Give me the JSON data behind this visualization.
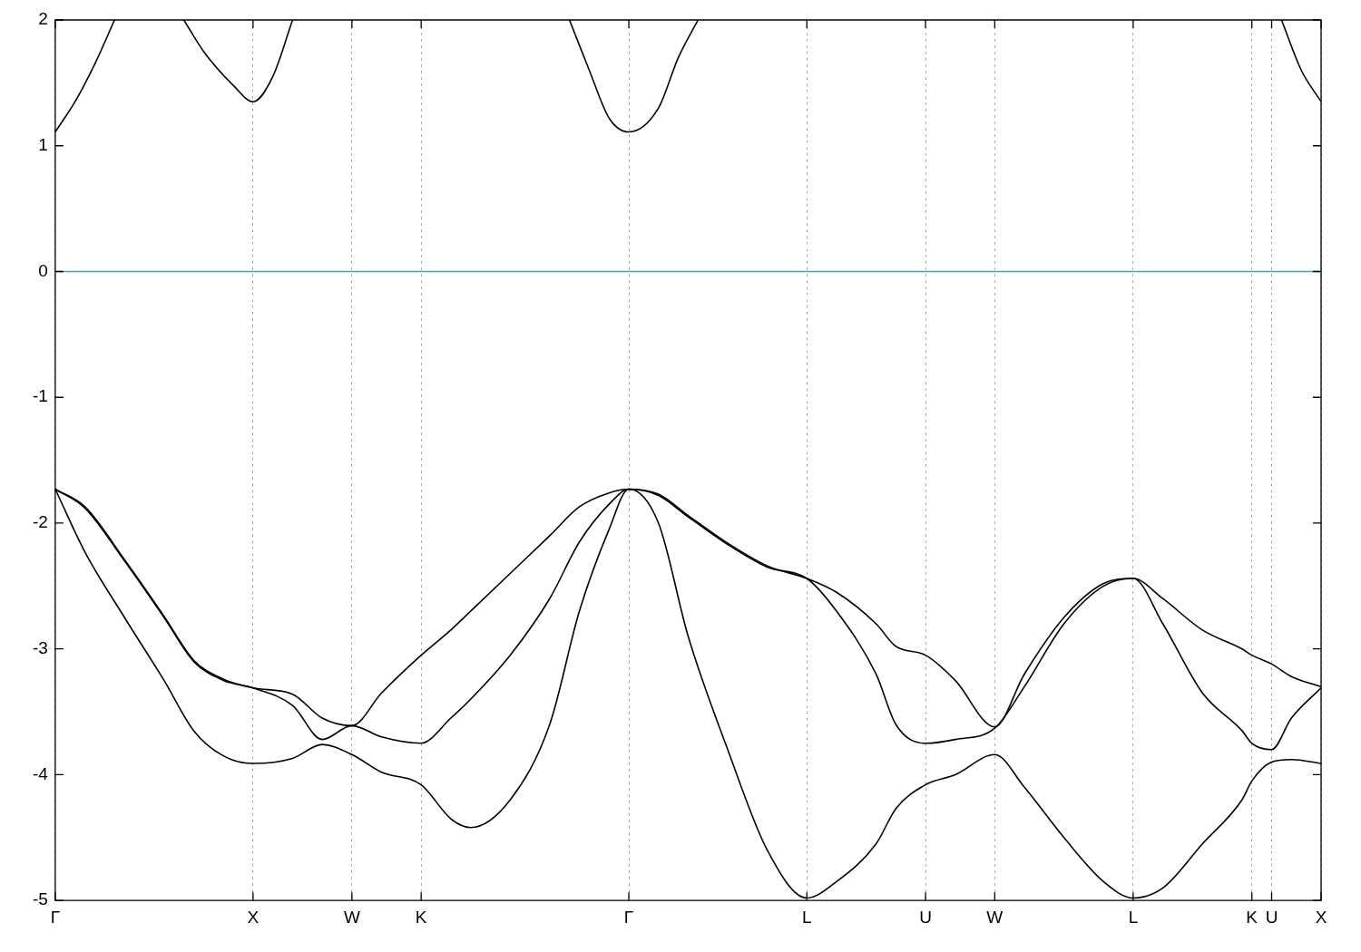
{
  "chart_data": {
    "type": "line",
    "ylim": [
      -5,
      2
    ],
    "categories": [
      "Γ",
      null,
      null,
      null,
      null,
      null,
      null,
      null,
      null,
      null,
      null,
      null,
      null,
      null,
      null,
      null,
      null,
      null,
      null,
      null,
      "X",
      null,
      null,
      null,
      null,
      null,
      null,
      null,
      null,
      null,
      "W",
      null,
      null,
      null,
      null,
      null,
      null,
      "K",
      null,
      null,
      null,
      null,
      null,
      null,
      null,
      null,
      null,
      null,
      null,
      null,
      null,
      null,
      null,
      null,
      null,
      null,
      null,
      null,
      "Γ",
      null,
      null,
      null,
      null,
      null,
      null,
      null,
      null,
      null,
      null,
      null,
      null,
      null,
      null,
      null,
      null,
      null,
      "L",
      null,
      null,
      null,
      null,
      null,
      null,
      null,
      null,
      null,
      null,
      null,
      "U",
      null,
      null,
      null,
      null,
      null,
      null,
      "W",
      null,
      null,
      null,
      null,
      null,
      null,
      null,
      null,
      null,
      null,
      null,
      null,
      null,
      "L",
      null,
      null,
      null,
      null,
      null,
      null,
      null,
      null,
      null,
      null,
      null,
      "K",
      null,
      "U",
      null,
      null,
      null,
      null,
      "X"
    ],
    "yticks": [
      -5,
      -4,
      -3,
      -2,
      -1,
      0,
      1,
      2
    ],
    "grid": "x",
    "legend": false,
    "marker": "none",
    "line_style": "solid",
    "ref_lines": [
      {
        "axis": "y",
        "value": 0,
        "color": "#3ba3d8"
      }
    ],
    "series": [
      {
        "color": "#000000",
        "values": [
          -1.73,
          null,
          null,
          -2.23,
          null,
          null,
          null,
          -2.75,
          null,
          null,
          null,
          -3.25,
          null,
          null,
          -3.65,
          null,
          null,
          -3.85,
          null,
          null,
          -3.91,
          null,
          null,
          null,
          -3.87,
          null,
          null,
          -3.76,
          null,
          null,
          -3.84,
          null,
          null,
          -3.98,
          null,
          null,
          null,
          -4.08,
          null,
          null,
          -4.35,
          null,
          -4.42,
          null,
          null,
          null,
          -4.2,
          null,
          null,
          null,
          -3.6,
          null,
          null,
          -2.7,
          null,
          null,
          -2.05,
          null,
          -1.73,
          null,
          null,
          -2.0,
          null,
          null,
          -2.9,
          null,
          null,
          null,
          -3.8,
          null,
          null,
          null,
          -4.6,
          null,
          null,
          null,
          -4.98,
          null,
          null,
          -4.85,
          null,
          null,
          null,
          -4.55,
          null,
          -4.27,
          null,
          null,
          -4.08,
          null,
          null,
          -4.0,
          null,
          null,
          null,
          -3.84,
          null,
          null,
          -4.1,
          null,
          null,
          null,
          -4.5,
          null,
          null,
          null,
          -4.85,
          null,
          null,
          -4.98,
          null,
          null,
          -4.9,
          null,
          null,
          null,
          -4.55,
          null,
          null,
          null,
          -4.2,
          -4.05,
          null,
          -3.9,
          null,
          -3.88,
          null,
          null,
          -3.91
        ]
      },
      {
        "color": "#000000",
        "values": [
          -1.73,
          null,
          null,
          -1.88,
          null,
          null,
          null,
          -2.3,
          null,
          null,
          null,
          -2.75,
          null,
          null,
          -3.1,
          null,
          null,
          -3.25,
          null,
          null,
          -3.31,
          null,
          null,
          null,
          -3.45,
          null,
          null,
          -3.72,
          null,
          null,
          -3.61,
          null,
          null,
          -3.7,
          null,
          null,
          null,
          -3.75,
          null,
          null,
          -3.55,
          null,
          -3.4,
          null,
          null,
          null,
          -3.05,
          null,
          null,
          null,
          -2.6,
          null,
          null,
          -2.15,
          null,
          null,
          -1.85,
          null,
          -1.73,
          null,
          null,
          -1.78,
          null,
          null,
          -1.95,
          null,
          null,
          null,
          -2.17,
          null,
          null,
          null,
          -2.35,
          null,
          null,
          null,
          -2.44,
          null,
          null,
          -2.7,
          null,
          null,
          null,
          -3.2,
          null,
          -3.6,
          null,
          null,
          -3.75,
          null,
          null,
          -3.72,
          null,
          null,
          null,
          -3.63,
          null,
          null,
          -3.3,
          null,
          null,
          null,
          -2.8,
          null,
          null,
          null,
          -2.5,
          null,
          null,
          -2.44,
          null,
          null,
          -2.8,
          null,
          null,
          null,
          -3.35,
          null,
          null,
          null,
          -3.65,
          -3.75,
          null,
          -3.8,
          null,
          -3.55,
          null,
          null,
          -3.31
        ]
      },
      {
        "color": "#000000",
        "values": [
          -1.73,
          null,
          null,
          -1.87,
          null,
          null,
          null,
          -2.29,
          null,
          null,
          null,
          -2.74,
          null,
          null,
          -3.09,
          null,
          null,
          -3.24,
          null,
          null,
          -3.31,
          null,
          null,
          null,
          -3.36,
          null,
          null,
          -3.55,
          null,
          null,
          -3.61,
          null,
          null,
          -3.35,
          null,
          null,
          null,
          -3.05,
          null,
          null,
          -2.85,
          null,
          -2.7,
          null,
          null,
          null,
          -2.4,
          null,
          null,
          null,
          -2.1,
          null,
          null,
          -1.87,
          null,
          null,
          -1.76,
          null,
          -1.73,
          null,
          null,
          -1.77,
          null,
          null,
          -1.94,
          null,
          null,
          null,
          -2.16,
          null,
          null,
          null,
          -2.34,
          null,
          null,
          null,
          -2.44,
          null,
          null,
          -2.55,
          null,
          null,
          null,
          -2.8,
          null,
          -2.98,
          null,
          null,
          -3.05,
          null,
          null,
          -3.25,
          null,
          null,
          null,
          -3.62,
          null,
          null,
          -3.2,
          null,
          null,
          null,
          -2.75,
          null,
          null,
          null,
          -2.48,
          null,
          null,
          -2.44,
          null,
          null,
          -2.6,
          null,
          null,
          null,
          -2.85,
          null,
          null,
          null,
          -3.0,
          -3.05,
          null,
          -3.12,
          null,
          -3.22,
          null,
          null,
          -3.3
        ]
      },
      {
        "color": "#000000",
        "values": [
          1.11,
          null,
          1.35,
          null,
          1.65,
          null,
          2,
          null,
          null,
          null,
          null,
          null,
          null,
          null,
          null,
          null,
          null,
          null,
          null,
          null,
          null,
          null,
          null,
          null,
          null,
          null,
          null,
          null,
          null,
          null,
          null,
          null,
          null,
          null,
          null,
          null,
          null,
          null,
          null,
          null,
          null,
          null,
          null,
          null,
          null,
          null,
          null,
          null,
          null,
          null,
          null,
          null,
          null,
          null,
          null,
          null,
          null,
          null,
          null,
          null,
          null,
          null,
          null,
          null,
          null,
          null,
          null,
          null,
          null,
          null,
          null,
          null,
          null,
          null,
          null,
          null,
          null,
          null,
          null,
          null,
          null,
          null,
          null,
          null,
          null,
          null,
          null,
          null,
          null,
          null,
          null,
          null,
          null,
          null,
          null,
          null,
          null,
          null,
          null,
          null,
          null,
          null,
          null,
          null,
          null,
          null,
          null,
          null,
          null,
          null,
          null,
          null,
          null,
          null,
          null,
          null,
          null,
          null,
          null,
          null,
          null,
          null,
          null,
          null,
          null,
          null,
          null,
          null,
          null
        ]
      },
      {
        "color": "#000000",
        "values": [
          null,
          null,
          null,
          null,
          null,
          null,
          null,
          null,
          null,
          null,
          null,
          null,
          null,
          2,
          null,
          1.75,
          null,
          null,
          1.48,
          null,
          1.35,
          null,
          1.55,
          null,
          2,
          null,
          null,
          null,
          null,
          null,
          null,
          null,
          null,
          null,
          null,
          null,
          null,
          null,
          null,
          null,
          null,
          null,
          null,
          null,
          null,
          null,
          null,
          null,
          null,
          null,
          null,
          null,
          null,
          null,
          null,
          null,
          null,
          null,
          null,
          null,
          null,
          null,
          null,
          null,
          null,
          null,
          null,
          null,
          null,
          null,
          null,
          null,
          null,
          null,
          null,
          null,
          null,
          null,
          null,
          null,
          null,
          null,
          null,
          null,
          null,
          null,
          null,
          null,
          null,
          null,
          null,
          null,
          null,
          null,
          null,
          null,
          null,
          null,
          null,
          null,
          null,
          null,
          null,
          null,
          null,
          null,
          null,
          null,
          null,
          null,
          null,
          null,
          null,
          null,
          null,
          null,
          null,
          null,
          null,
          null,
          null,
          null,
          null,
          null,
          null,
          null,
          null,
          null,
          null
        ]
      },
      {
        "color": "#000000",
        "values": [
          null,
          null,
          null,
          null,
          null,
          null,
          null,
          null,
          null,
          null,
          null,
          null,
          null,
          null,
          null,
          null,
          null,
          null,
          null,
          null,
          null,
          null,
          null,
          null,
          null,
          null,
          null,
          null,
          null,
          null,
          null,
          null,
          null,
          null,
          null,
          null,
          null,
          null,
          null,
          null,
          null,
          null,
          null,
          null,
          null,
          null,
          null,
          null,
          null,
          null,
          null,
          null,
          2,
          null,
          1.6,
          null,
          1.22,
          null,
          1.11,
          null,
          null,
          1.3,
          null,
          1.7,
          null,
          2,
          null,
          null,
          null,
          null,
          null,
          null,
          null,
          null,
          null,
          null,
          null,
          null,
          null,
          null,
          null,
          null,
          null,
          null,
          null,
          null,
          null,
          null,
          null,
          null,
          null,
          null,
          null,
          null,
          null,
          null,
          null,
          null,
          null,
          null,
          null,
          null,
          null,
          null,
          null,
          null,
          null,
          null,
          null,
          null,
          null,
          null,
          null,
          null,
          null,
          null,
          null,
          null,
          null,
          null,
          null,
          null,
          null,
          null,
          null,
          null,
          null,
          null,
          null
        ]
      },
      {
        "color": "#000000",
        "values": [
          null,
          null,
          null,
          null,
          null,
          null,
          null,
          null,
          null,
          null,
          null,
          null,
          null,
          null,
          null,
          null,
          null,
          null,
          null,
          null,
          null,
          null,
          null,
          null,
          null,
          null,
          null,
          null,
          null,
          null,
          null,
          null,
          null,
          null,
          null,
          null,
          null,
          null,
          null,
          null,
          null,
          null,
          null,
          null,
          null,
          null,
          null,
          null,
          null,
          null,
          null,
          null,
          null,
          null,
          null,
          null,
          null,
          null,
          null,
          null,
          null,
          null,
          null,
          null,
          null,
          null,
          null,
          null,
          null,
          null,
          null,
          null,
          null,
          null,
          null,
          null,
          null,
          null,
          null,
          null,
          null,
          null,
          null,
          null,
          null,
          null,
          null,
          null,
          null,
          null,
          null,
          null,
          null,
          null,
          null,
          null,
          null,
          null,
          null,
          null,
          null,
          null,
          null,
          null,
          null,
          null,
          null,
          null,
          null,
          null,
          null,
          null,
          null,
          null,
          null,
          null,
          null,
          null,
          null,
          null,
          null,
          null,
          null,
          null,
          2,
          null,
          1.6,
          null,
          1.35
        ]
      }
    ]
  }
}
